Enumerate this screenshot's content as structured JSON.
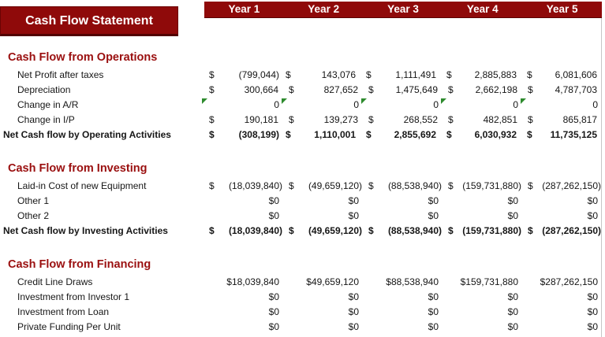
{
  "title": "Cash Flow Statement",
  "columns": [
    "Year 1",
    "Year 2",
    "Year 3",
    "Year 4",
    "Year 5"
  ],
  "currency_symbol": "$",
  "colors": {
    "accent_red": "#8f0a0a",
    "heading_red": "#9a0f0f",
    "flag_green": "#2e8b2e",
    "gridline_gray": "#c6c6c6",
    "text": "#161616",
    "header_text": "#ffffff"
  },
  "icons": {
    "flag": "error-indicator-icon (green top-left corner triangle)"
  },
  "sections": [
    {
      "heading": "Cash Flow from Operations",
      "rows": [
        {
          "label": "Net Profit after taxes",
          "format": "accounting",
          "bold": false,
          "flag": false,
          "values": [
            "(799,044)",
            "143,076",
            "1,111,491",
            "2,885,883",
            "6,081,606"
          ]
        },
        {
          "label": "Depreciation",
          "format": "accounting",
          "bold": false,
          "flag": false,
          "values": [
            "300,664",
            "827,652",
            "1,475,649",
            "2,662,198",
            "4,787,703"
          ]
        },
        {
          "label": "Change in A/R",
          "format": "plain",
          "bold": false,
          "flag": true,
          "values": [
            "0",
            "0",
            "0",
            "0",
            "0"
          ]
        },
        {
          "label": "Change in I/P",
          "format": "accounting",
          "bold": false,
          "flag": false,
          "values": [
            "190,181",
            "139,273",
            "268,552",
            "482,851",
            "865,817"
          ]
        },
        {
          "label": "Net Cash flow by Operating Activities",
          "format": "accounting",
          "bold": true,
          "flag": false,
          "values": [
            "(308,199)",
            "1,110,001",
            "2,855,692",
            "6,030,932",
            "11,735,125"
          ]
        }
      ]
    },
    {
      "heading": "Cash Flow from Investing",
      "rows": [
        {
          "label": "Laid-in Cost of new Equipment",
          "format": "accounting",
          "bold": false,
          "flag": false,
          "values": [
            "(18,039,840)",
            "(49,659,120)",
            "(88,538,940)",
            "(159,731,880)",
            "(287,262,150)"
          ]
        },
        {
          "label": "Other 1",
          "format": "currency",
          "bold": false,
          "flag": false,
          "values": [
            "$0",
            "$0",
            "$0",
            "$0",
            "$0"
          ]
        },
        {
          "label": "Other 2",
          "format": "currency",
          "bold": false,
          "flag": false,
          "values": [
            "$0",
            "$0",
            "$0",
            "$0",
            "$0"
          ]
        },
        {
          "label": "Net Cash flow by Investing Activities",
          "format": "accounting",
          "bold": true,
          "flag": false,
          "values": [
            "(18,039,840)",
            "(49,659,120)",
            "(88,538,940)",
            "(159,731,880)",
            "(287,262,150)"
          ]
        }
      ]
    },
    {
      "heading": "Cash Flow from Financing",
      "rows": [
        {
          "label": "Credit Line Draws",
          "format": "currency",
          "bold": false,
          "flag": false,
          "values": [
            "$18,039,840",
            "$49,659,120",
            "$88,538,940",
            "$159,731,880",
            "$287,262,150"
          ]
        },
        {
          "label": "Investment from Investor 1",
          "format": "currency",
          "bold": false,
          "flag": false,
          "values": [
            "$0",
            "$0",
            "$0",
            "$0",
            "$0"
          ]
        },
        {
          "label": "Investment from Loan",
          "format": "currency",
          "bold": false,
          "flag": false,
          "values": [
            "$0",
            "$0",
            "$0",
            "$0",
            "$0"
          ]
        },
        {
          "label": "Private Funding Per Unit",
          "format": "currency",
          "bold": false,
          "flag": false,
          "values": [
            "$0",
            "$0",
            "$0",
            "$0",
            "$0"
          ]
        }
      ]
    }
  ]
}
